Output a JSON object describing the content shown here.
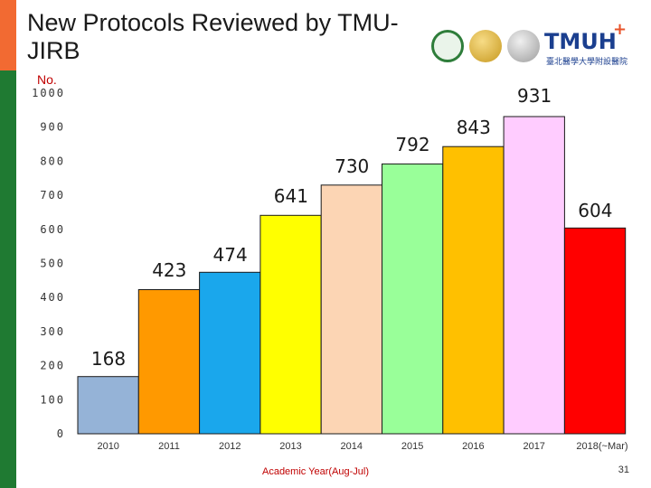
{
  "slide": {
    "title": "New Protocols Reviewed by TMU-JIRB",
    "page_number": "31",
    "logo_text": "TMUH",
    "logo_plus": "+",
    "logo_subtitle": "臺北醫學大學附設醫院"
  },
  "colors": {
    "accent_green": "#1f7a32",
    "accent_orange": "#f26a32",
    "xlabel": "#c00000"
  },
  "chart_data": {
    "type": "bar",
    "title": "New Protocols Reviewed by TMU-JIRB",
    "ylabel": "No.",
    "xlabel": "Academic Year(Aug-Jul)",
    "ylim": [
      0,
      1000
    ],
    "yticks": [
      "0",
      "100",
      "200",
      "300",
      "400",
      "500",
      "600",
      "700",
      "800",
      "900",
      "1000"
    ],
    "categories": [
      "2010",
      "2011",
      "2012",
      "2013",
      "2014",
      "2015",
      "2016",
      "2017",
      "2018(~Mar)"
    ],
    "values": [
      168,
      423,
      474,
      641,
      730,
      792,
      843,
      931,
      604
    ],
    "data_labels": [
      "168",
      "423",
      "474",
      "641",
      "730",
      "792",
      "843",
      "931",
      "604"
    ],
    "bar_colors": [
      "#95b3d7",
      "#ff9900",
      "#1aa7ec",
      "#ffff00",
      "#fcd5b4",
      "#99ff99",
      "#ffc000",
      "#ffccff",
      "#ff0000"
    ],
    "grid": false,
    "legend": "none"
  }
}
